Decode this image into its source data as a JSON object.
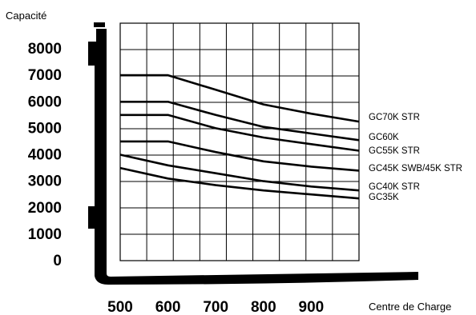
{
  "chart_data": {
    "type": "line",
    "ylabel": "Capacité",
    "xlabel": "Centre de Charge",
    "xlim": [
      500,
      1000
    ],
    "ylim": [
      0,
      8000
    ],
    "x_ticks": [
      "500",
      "600",
      "700",
      "800",
      "900"
    ],
    "y_ticks": [
      "8000",
      "7000",
      "6000",
      "5000",
      "4000",
      "3000",
      "2000",
      "1000",
      "0"
    ],
    "grid": true,
    "legend": "inline-right",
    "series": [
      {
        "name": "GC70K STR",
        "x": [
          500,
          600,
          700,
          800,
          900,
          1000
        ],
        "y": [
          7000,
          7000,
          6450,
          5900,
          5550,
          5250
        ]
      },
      {
        "name": "GC60K",
        "x": [
          500,
          600,
          700,
          800,
          900,
          1000
        ],
        "y": [
          6000,
          6000,
          5500,
          5050,
          4800,
          4550
        ]
      },
      {
        "name": "GC55K STR",
        "x": [
          500,
          600,
          700,
          800,
          900,
          1000
        ],
        "y": [
          5500,
          5500,
          5000,
          4650,
          4400,
          4150
        ]
      },
      {
        "name": "GC45K SWB/45K STR",
        "x": [
          500,
          600,
          700,
          800,
          900,
          1000
        ],
        "y": [
          4500,
          4500,
          4100,
          3750,
          3550,
          3400
        ]
      },
      {
        "name": "GC40K STR",
        "x": [
          500,
          600,
          700,
          800,
          900,
          1000
        ],
        "y": [
          4000,
          3600,
          3300,
          3000,
          2800,
          2650
        ]
      },
      {
        "name": "GC35K",
        "x": [
          500,
          600,
          700,
          800,
          900,
          1000
        ],
        "y": [
          3500,
          3100,
          2850,
          2650,
          2500,
          2350
        ]
      }
    ]
  }
}
